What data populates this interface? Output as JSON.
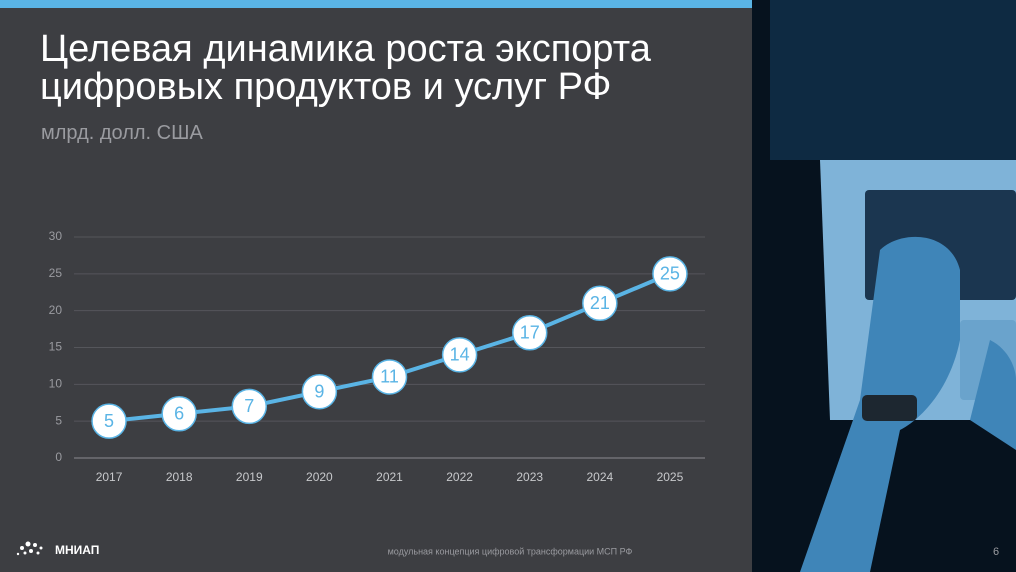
{
  "chart_data": {
    "type": "line",
    "title": "Целевая динамика роста экспорта цифровых продуктов и услуг РФ",
    "subtitle": "млрд. долл. США",
    "categories": [
      "2017",
      "2018",
      "2019",
      "2020",
      "2021",
      "2022",
      "2023",
      "2024",
      "2025"
    ],
    "values": [
      5,
      6,
      7,
      9,
      11,
      14,
      17,
      21,
      25
    ],
    "color": "#5ab4e5",
    "ylim": [
      0,
      30
    ],
    "yticks": [
      0,
      5,
      10,
      15,
      20,
      25,
      30
    ],
    "grid": true
  },
  "logo": "МНИАП",
  "footer": "модульная концепция цифровой трансформации МСП РФ",
  "page_number": "6"
}
